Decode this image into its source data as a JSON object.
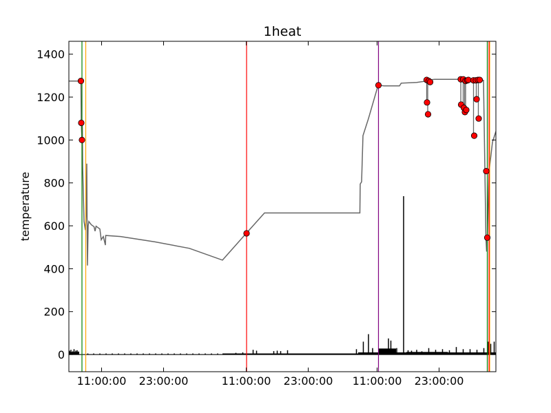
{
  "chart_data": {
    "type": "line",
    "title": "1heat",
    "xlabel": "",
    "ylabel": "temperature",
    "xlim_hours": [
      0,
      124
    ],
    "ylim": [
      -80,
      1460
    ],
    "yticks": [
      0,
      200,
      400,
      600,
      800,
      1000,
      1200,
      1400
    ],
    "xticks": [
      {
        "t": 9.5,
        "label": "11:00:00"
      },
      {
        "t": 27.5,
        "label": "23:00:00"
      },
      {
        "t": 51.5,
        "label": "11:00:00"
      },
      {
        "t": 69.5,
        "label": "23:00:00"
      },
      {
        "t": 89.5,
        "label": "11:00:00"
      },
      {
        "t": 107.5,
        "label": "23:00:00"
      }
    ],
    "series": [
      {
        "role": "temperature",
        "color": "#666666",
        "points": [
          [
            0,
            1275
          ],
          [
            2.5,
            1275
          ],
          [
            3.5,
            1275
          ],
          [
            3.6,
            1080
          ],
          [
            3.8,
            1000
          ],
          [
            3.9,
            1090
          ],
          [
            4.0,
            880
          ],
          [
            4.4,
            620
          ],
          [
            4.8,
            580
          ],
          [
            5.0,
            650
          ],
          [
            5.2,
            890
          ],
          [
            5.3,
            600
          ],
          [
            5.4,
            415
          ],
          [
            5.6,
            600
          ],
          [
            5.8,
            620
          ],
          [
            6.5,
            605
          ],
          [
            7.3,
            596
          ],
          [
            7.6,
            575
          ],
          [
            7.9,
            598
          ],
          [
            9.0,
            585
          ],
          [
            9.4,
            535
          ],
          [
            10.0,
            550
          ],
          [
            10.6,
            510
          ],
          [
            10.7,
            555
          ],
          [
            15,
            550
          ],
          [
            25,
            525
          ],
          [
            35,
            495
          ],
          [
            44.6,
            440
          ],
          [
            51.5,
            565
          ],
          [
            56.8,
            660
          ],
          [
            68,
            660
          ],
          [
            84.5,
            660
          ],
          [
            84.6,
            795
          ],
          [
            85.0,
            805
          ],
          [
            85.4,
            1020
          ],
          [
            87,
            1100
          ],
          [
            89.8,
            1255
          ],
          [
            90.2,
            1255
          ],
          [
            91.5,
            1252
          ],
          [
            96,
            1252
          ],
          [
            96.5,
            1265
          ],
          [
            101,
            1268
          ],
          [
            103.9,
            1275
          ],
          [
            104.5,
            1280
          ],
          [
            106.2,
            1283
          ],
          [
            113.8,
            1283
          ],
          [
            114.5,
            1280
          ],
          [
            120.4,
            1278
          ],
          [
            120.8,
            860
          ],
          [
            121.1,
            545
          ],
          [
            121.3,
            480
          ],
          [
            121.5,
            545
          ],
          [
            122.0,
            850
          ],
          [
            123.0,
            990
          ],
          [
            124,
            1040
          ]
        ],
        "dips": [
          [
            103.9,
            1170
          ],
          [
            104.2,
            1120
          ],
          [
            113.8,
            1170
          ],
          [
            114.5,
            1150
          ],
          [
            114.9,
            1130
          ],
          [
            115.2,
            1140
          ],
          [
            117.5,
            1020
          ],
          [
            118.3,
            1190
          ],
          [
            118.9,
            1100
          ]
        ]
      },
      {
        "role": "rate",
        "color": "#000000",
        "baseline": 0,
        "spikes": [
          [
            0.2,
            18
          ],
          [
            0.6,
            22
          ],
          [
            1.1,
            15
          ],
          [
            1.5,
            25
          ],
          [
            2.0,
            18
          ],
          [
            2.4,
            20
          ],
          [
            2.8,
            14
          ],
          [
            5.5,
            5
          ],
          [
            7.2,
            5
          ],
          [
            9.0,
            5
          ],
          [
            10.8,
            5
          ],
          [
            12.6,
            5
          ],
          [
            14.4,
            5
          ],
          [
            16.2,
            5
          ],
          [
            18.0,
            5
          ],
          [
            19.8,
            5
          ],
          [
            21.6,
            5
          ],
          [
            23.4,
            5
          ],
          [
            25.2,
            5
          ],
          [
            27.0,
            5
          ],
          [
            28.8,
            5
          ],
          [
            30.6,
            5
          ],
          [
            32.4,
            5
          ],
          [
            34.2,
            5
          ],
          [
            36.0,
            5
          ],
          [
            37.8,
            5
          ],
          [
            39.6,
            5
          ],
          [
            41.4,
            5
          ],
          [
            43.2,
            5
          ],
          [
            48.5,
            8
          ],
          [
            50.5,
            10
          ],
          [
            53.5,
            22
          ],
          [
            54.5,
            18
          ],
          [
            59.5,
            16
          ],
          [
            60.5,
            18
          ],
          [
            61.5,
            16
          ],
          [
            63.5,
            20
          ],
          [
            83.5,
            25
          ],
          [
            85.5,
            60
          ],
          [
            87.0,
            95
          ],
          [
            88.2,
            30
          ],
          [
            92.8,
            75
          ],
          [
            93.5,
            65
          ],
          [
            95.2,
            30
          ],
          [
            97.2,
            738
          ],
          [
            98.5,
            20
          ],
          [
            99.5,
            18
          ],
          [
            101.0,
            22
          ],
          [
            102.5,
            15
          ],
          [
            104.5,
            30
          ],
          [
            106.5,
            22
          ],
          [
            108.5,
            25
          ],
          [
            110.5,
            20
          ],
          [
            112.5,
            35
          ],
          [
            114.5,
            25
          ],
          [
            116.5,
            25
          ],
          [
            118.5,
            22
          ],
          [
            120.5,
            30
          ],
          [
            121.8,
            60
          ],
          [
            122.5,
            50
          ],
          [
            123.5,
            60
          ]
        ],
        "raised": [
          [
            0,
            3,
            12
          ],
          [
            44.6,
            53,
            5
          ],
          [
            53,
            84,
            5
          ],
          [
            84,
            90,
            10
          ],
          [
            90,
            95,
            28
          ],
          [
            95,
            98,
            10
          ],
          [
            98,
            110,
            12
          ],
          [
            110,
            124,
            10
          ]
        ]
      }
    ],
    "markers": {
      "color": "#ff0000",
      "edge": "#000000",
      "points": [
        [
          3.5,
          1275
        ],
        [
          3.6,
          1080
        ],
        [
          3.8,
          1000
        ],
        [
          51.6,
          565
        ],
        [
          89.9,
          1255
        ],
        [
          103.9,
          1280
        ],
        [
          104.0,
          1175
        ],
        [
          104.3,
          1120
        ],
        [
          104.5,
          1275
        ],
        [
          104.9,
          1270
        ],
        [
          113.8,
          1283
        ],
        [
          113.9,
          1165
        ],
        [
          114.5,
          1283
        ],
        [
          114.7,
          1150
        ],
        [
          115.0,
          1130
        ],
        [
          115.2,
          1275
        ],
        [
          115.4,
          1140
        ],
        [
          115.7,
          1278
        ],
        [
          116.0,
          1280
        ],
        [
          117.5,
          1278
        ],
        [
          117.7,
          1020
        ],
        [
          118.2,
          1278
        ],
        [
          118.4,
          1190
        ],
        [
          118.8,
          1280
        ],
        [
          119.0,
          1100
        ],
        [
          119.3,
          1280
        ],
        [
          121.2,
          855
        ],
        [
          121.5,
          545
        ]
      ]
    },
    "vlines": [
      {
        "t": 3.8,
        "color": "#008000"
      },
      {
        "t": 4.9,
        "color": "#ffa500"
      },
      {
        "t": 51.6,
        "color": "#ff0000"
      },
      {
        "t": 89.9,
        "color": "#800080"
      },
      {
        "t": 121.5,
        "color": "#008000"
      },
      {
        "t": 122.2,
        "color": "#ffa500"
      },
      {
        "t": 122.0,
        "color": "#ff0000"
      }
    ],
    "grid": false,
    "legend": "none"
  }
}
